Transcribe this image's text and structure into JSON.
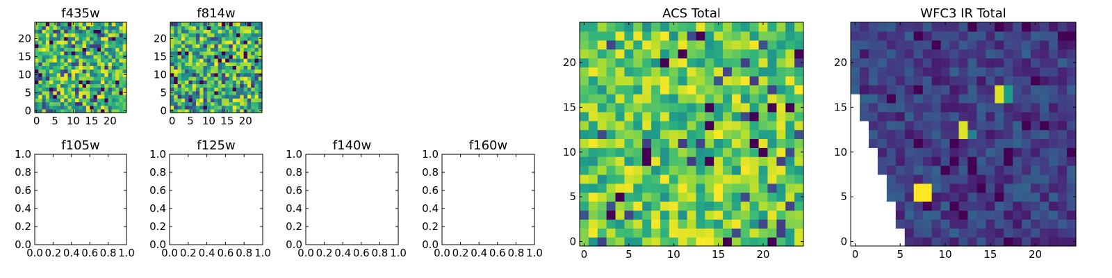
{
  "chart_data": [
    {
      "type": "heatmap",
      "title": "f435w",
      "xlabel": "",
      "ylabel": "",
      "size": [
        25,
        25
      ],
      "xlim": [
        -0.5,
        24.5
      ],
      "ylim": [
        -0.5,
        24.5
      ],
      "xticks": [
        0,
        5,
        10,
        15,
        20
      ],
      "yticks": [
        0,
        5,
        10,
        15,
        20
      ],
      "colormap": "viridis",
      "fill": "random",
      "seed": 11,
      "hot_spots": [],
      "masked_region": null
    },
    {
      "type": "heatmap",
      "title": "f814w",
      "xlabel": "",
      "ylabel": "",
      "size": [
        25,
        25
      ],
      "xlim": [
        -0.5,
        24.5
      ],
      "ylim": [
        -0.5,
        24.5
      ],
      "xticks": [
        0,
        5,
        10,
        15,
        20
      ],
      "yticks": [
        0,
        5,
        10,
        15,
        20
      ],
      "colormap": "viridis",
      "fill": "random",
      "seed": 23,
      "hot_spots": [],
      "masked_region": null
    },
    {
      "type": "empty",
      "title": "f105w",
      "xlim": [
        0,
        1
      ],
      "ylim": [
        0,
        1
      ],
      "xtick_labels": [
        "0.0",
        "0.2",
        "0.4",
        "0.6",
        "0.8",
        "1.0"
      ],
      "ytick_labels": [
        "0.0",
        "0.2",
        "0.4",
        "0.6",
        "0.8",
        "1.0"
      ]
    },
    {
      "type": "empty",
      "title": "f125w",
      "xlim": [
        0,
        1
      ],
      "ylim": [
        0,
        1
      ],
      "xtick_labels": [
        "0.0",
        "0.2",
        "0.4",
        "0.6",
        "0.8",
        "1.0"
      ],
      "ytick_labels": [
        "0.0",
        "0.2",
        "0.4",
        "0.6",
        "0.8",
        "1.0"
      ]
    },
    {
      "type": "empty",
      "title": "f140w",
      "xlim": [
        0,
        1
      ],
      "ylim": [
        0,
        1
      ],
      "xtick_labels": [
        "0.0",
        "0.2",
        "0.4",
        "0.6",
        "0.8",
        "1.0"
      ],
      "ytick_labels": [
        "0.0",
        "0.2",
        "0.4",
        "0.6",
        "0.8",
        "1.0"
      ]
    },
    {
      "type": "empty",
      "title": "f160w",
      "xlim": [
        0,
        1
      ],
      "ylim": [
        0,
        1
      ],
      "xtick_labels": [
        "0.0",
        "0.2",
        "0.4",
        "0.6",
        "0.8",
        "1.0"
      ],
      "ytick_labels": [
        "0.0",
        "0.2",
        "0.4",
        "0.6",
        "0.8",
        "1.0"
      ]
    },
    {
      "type": "heatmap",
      "title": "ACS Total",
      "xlabel": "",
      "ylabel": "",
      "size": [
        25,
        25
      ],
      "xlim": [
        -0.5,
        24.5
      ],
      "ylim": [
        -0.5,
        24.5
      ],
      "xticks": [
        0,
        5,
        10,
        15,
        20
      ],
      "yticks": [
        0,
        5,
        10,
        15,
        20
      ],
      "colormap": "viridis",
      "fill": "random-high",
      "seed": 37,
      "hot_spots": [],
      "masked_region": null
    },
    {
      "type": "heatmap",
      "title": "WFC3 IR Total",
      "xlabel": "",
      "ylabel": "",
      "size": [
        25,
        25
      ],
      "xlim": [
        -0.5,
        24.5
      ],
      "ylim": [
        -0.5,
        24.5
      ],
      "xticks": [
        0,
        5,
        10,
        15,
        20
      ],
      "yticks": [
        0,
        5,
        10,
        15,
        20
      ],
      "colormap": "viridis",
      "fill": "random-low",
      "seed": 53,
      "hot_spots": [
        [
          7,
          5,
          1.0
        ],
        [
          8,
          5,
          1.0
        ],
        [
          7,
          6,
          1.0
        ],
        [
          8,
          6,
          1.0
        ],
        [
          12,
          12,
          0.95
        ],
        [
          12,
          13,
          0.95
        ],
        [
          16,
          16,
          0.95
        ],
        [
          16,
          17,
          0.95
        ],
        [
          17,
          16,
          0.55
        ],
        [
          17,
          17,
          0.55
        ],
        [
          13,
          12,
          0.45
        ]
      ],
      "masked_region": {
        "description": "NaN pixels, lower-left triangle",
        "row_to_first_valid_col": [
          6,
          6,
          5,
          5,
          5,
          4,
          4,
          4,
          3,
          3,
          3,
          2,
          2,
          2,
          1,
          1,
          1,
          0,
          0,
          0,
          0,
          0,
          0,
          0,
          0
        ]
      }
    }
  ]
}
